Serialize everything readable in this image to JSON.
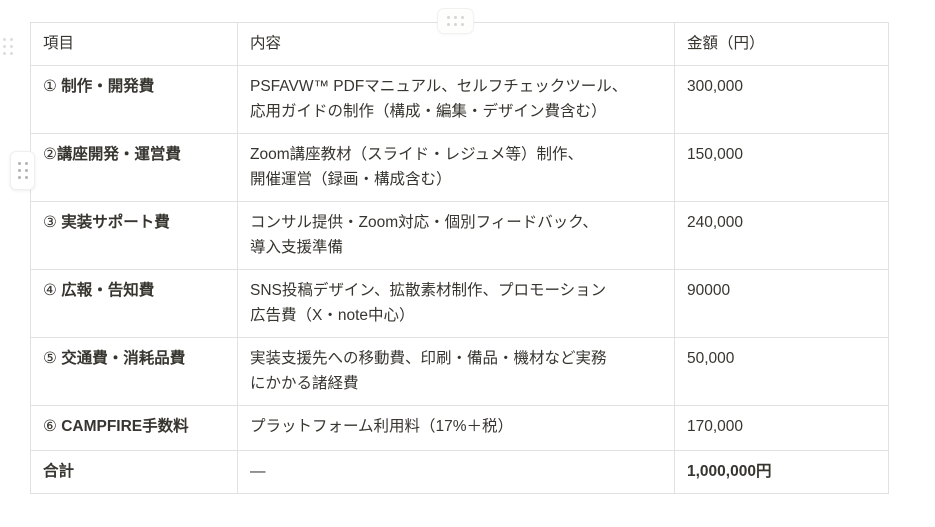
{
  "colors": {
    "text": "#37352f",
    "border": "#e1e1e1",
    "handle_dot_dark": "#b3b3b0",
    "handle_dot_light": "#d9d6d2",
    "background": "#ffffff"
  },
  "icons": {
    "top_handle": "six-dot-drag-handle",
    "block_handle": "six-dot-drag-handle",
    "row_handle": "six-dot-drag-handle"
  },
  "table": {
    "headers": [
      "項目",
      "内容",
      "金額（円）"
    ],
    "rows": [
      {
        "item_prefix": "① ",
        "item_name": "制作・開発費",
        "content_lines": [
          "PSFAVW™ PDFマニュアル、セルフチェックツール、",
          "応用ガイドの制作（構成・編集・デザイン費含む）"
        ],
        "amount": "300,000",
        "is_total": false
      },
      {
        "item_prefix": "②",
        "item_name": "講座開発・運営費",
        "content_lines": [
          "Zoom講座教材（スライド・レジュメ等）制作、",
          "開催運営（録画・構成含む）"
        ],
        "amount": "150,000",
        "is_total": false
      },
      {
        "item_prefix": "③ ",
        "item_name": "実装サポート費",
        "content_lines": [
          "コンサル提供・Zoom対応・個別フィードバック、",
          "導入支援準備"
        ],
        "amount": "240,000",
        "is_total": false
      },
      {
        "item_prefix": "④ ",
        "item_name": "広報・告知費",
        "content_lines": [
          "SNS投稿デザイン、拡散素材制作、プロモーション",
          "広告費（X・note中心）"
        ],
        "amount": "90000",
        "is_total": false
      },
      {
        "item_prefix": "⑤ ",
        "item_name": "交通費・消耗品費",
        "content_lines": [
          "実装支援先への移動費、印刷・備品・機材など実務",
          "にかかる諸経費"
        ],
        "amount": "50,000",
        "is_total": false
      },
      {
        "item_prefix": "⑥ ",
        "item_name": "CAMPFIRE手数料",
        "content_lines": [
          "プラットフォーム利用料（17%＋税）"
        ],
        "amount": "170,000",
        "is_total": false
      },
      {
        "item_prefix": "",
        "item_name": "合計",
        "content_lines": [
          "—"
        ],
        "amount": "1,000,000円",
        "is_total": true
      }
    ]
  }
}
